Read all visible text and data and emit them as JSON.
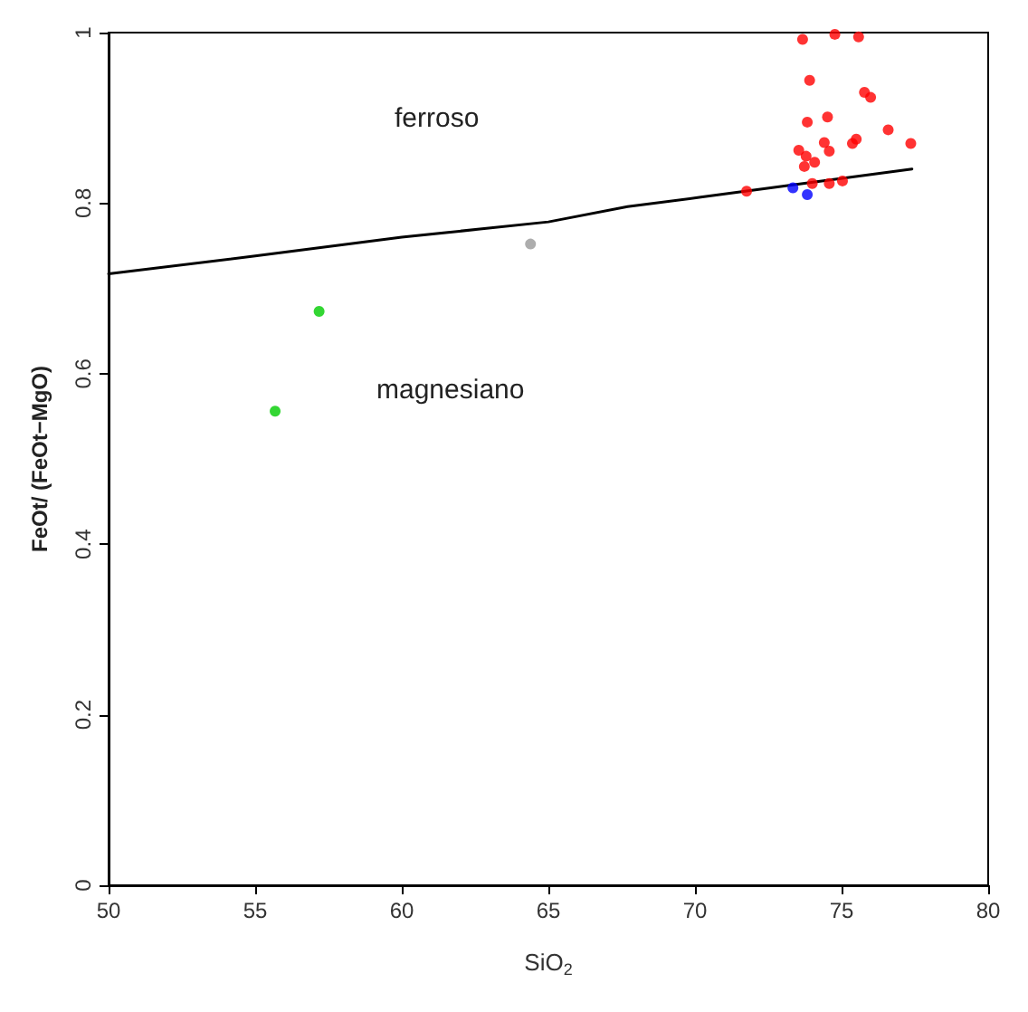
{
  "chart_data": {
    "type": "scatter",
    "xlabel": "SiO$_{2}$",
    "ylabel": "FeOt/ (FeOt−MgO)",
    "xlim": [
      50,
      80
    ],
    "xticks": [
      50,
      55,
      60,
      65,
      70,
      75,
      80
    ],
    "ylim": [
      0,
      1
    ],
    "yticks": [
      0,
      0.2,
      0.4,
      0.6,
      0.8,
      1
    ],
    "marker": "circle",
    "annotations": [
      "ferroso",
      "magnesiano"
    ],
    "series": [
      {
        "type": "line",
        "marker": "none",
        "color": "#000000",
        "x": [
          50,
          55,
          60,
          65,
          67.7,
          70.2,
          77.4
        ],
        "values": [
          0.717,
          0.738,
          0.76,
          0.778,
          0.796,
          0.807,
          0.84
        ]
      },
      {
        "color": "#ff0000",
        "x": [
          73.67,
          74.77,
          75.58,
          73.91,
          75.78,
          75.99,
          73.83,
          74.52,
          76.59,
          75.5,
          75.37,
          77.36,
          74.41,
          74.58,
          73.54,
          73.79,
          74.08,
          73.73,
          74.0,
          74.58,
          75.03,
          71.76
        ],
        "values": [
          0.992,
          0.998,
          0.995,
          0.944,
          0.93,
          0.924,
          0.895,
          0.901,
          0.886,
          0.875,
          0.87,
          0.87,
          0.871,
          0.861,
          0.862,
          0.855,
          0.848,
          0.843,
          0.823,
          0.823,
          0.826,
          0.814
        ]
      },
      {
        "color": "#0000ff",
        "x": [
          73.34,
          73.83
        ],
        "values": [
          0.818,
          0.81
        ]
      },
      {
        "color": "#00cc00",
        "x": [
          57.18,
          55.68
        ],
        "values": [
          0.673,
          0.556
        ]
      },
      {
        "color": "#999999",
        "x": [
          64.39
        ],
        "values": [
          0.752
        ]
      }
    ]
  }
}
